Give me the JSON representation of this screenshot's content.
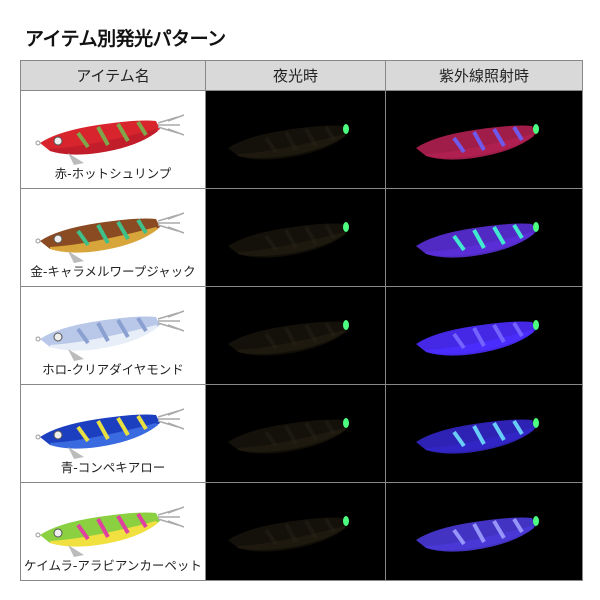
{
  "title": "アイテム別発光パターン",
  "columns": [
    "アイテム名",
    "夜光時",
    "紫外線照射時"
  ],
  "rows": [
    {
      "name": "赤-ホットシュリンプ",
      "body": "#d8242c",
      "belly": "#c21d2a",
      "accent": "#7fa64a",
      "night": "#4dff80",
      "uv": "#b02050",
      "uv_accent": "#6a60ff"
    },
    {
      "name": "金-キャラメルワープジャック",
      "body": "#8a4a22",
      "belly": "#d7a53a",
      "accent": "#3fc08a",
      "night": "#4dff80",
      "uv": "#5a2fd8",
      "uv_accent": "#40ffd0"
    },
    {
      "name": "ホロ-クリアダイヤモンド",
      "body": "#b9c8e8",
      "belly": "#e8eef8",
      "accent": "#8aa0d0",
      "night": "#4dff80",
      "uv": "#4b2cff",
      "uv_accent": "#7a6aff"
    },
    {
      "name": "青-コンペキアロー",
      "body": "#1c3fc0",
      "belly": "#3a6ae0",
      "accent": "#e8e040",
      "night": "#4dff80",
      "uv": "#3326c8",
      "uv_accent": "#70e0ff"
    },
    {
      "name": "ケイムラ-アラビアンカーペット",
      "body": "#8ad040",
      "belly": "#f0e040",
      "accent": "#e040a0",
      "night": "#4dff80",
      "uv": "#4a38d8",
      "uv_accent": "#a0a0ff"
    }
  ]
}
